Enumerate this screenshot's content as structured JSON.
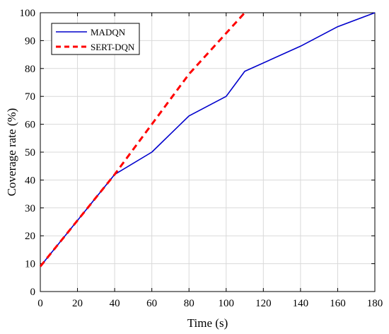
{
  "chart_data": {
    "type": "line",
    "xlabel": "Time (s)",
    "ylabel": "Coverage rate (%)",
    "xlim": [
      0,
      180
    ],
    "ylim": [
      0,
      100
    ],
    "xticks": [
      0,
      20,
      40,
      60,
      80,
      100,
      120,
      140,
      160,
      180
    ],
    "yticks": [
      0,
      10,
      20,
      30,
      40,
      50,
      60,
      70,
      80,
      90,
      100
    ],
    "grid": true,
    "legend_position": "top-left",
    "series": [
      {
        "name": "MADQN",
        "color": "#0000cc",
        "style": "solid",
        "x": [
          0,
          40,
          60,
          80,
          100,
          110,
          140,
          160,
          180
        ],
        "y": [
          9,
          42,
          50,
          63,
          70,
          79,
          88,
          95,
          100
        ]
      },
      {
        "name": "SERT-DQN",
        "color": "#ff0000",
        "style": "dashed",
        "x": [
          0,
          40,
          60,
          80,
          110
        ],
        "y": [
          9,
          42,
          60,
          78,
          100
        ]
      }
    ]
  }
}
